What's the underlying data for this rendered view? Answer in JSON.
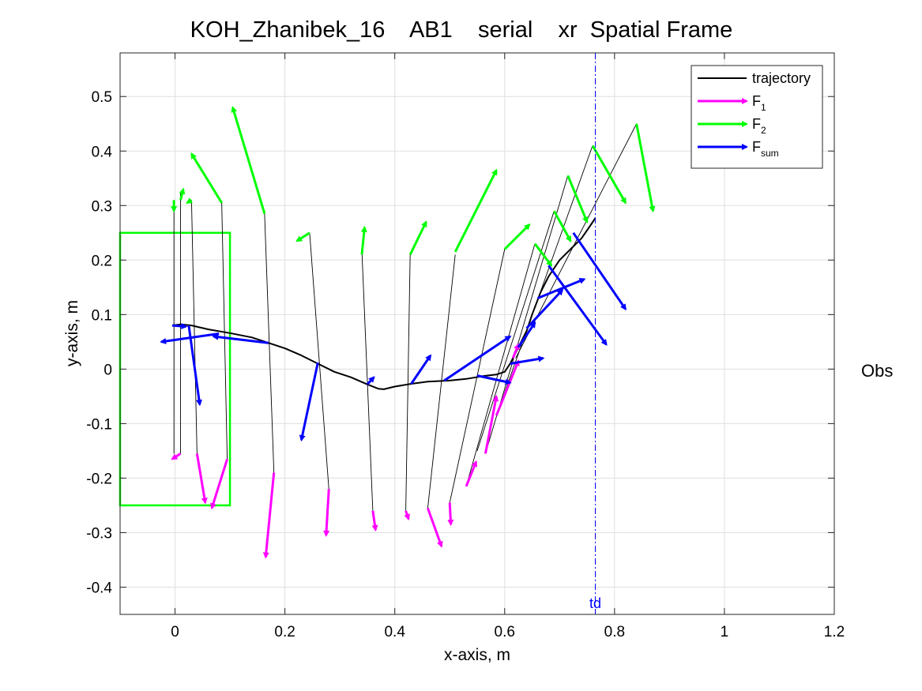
{
  "chart_data": {
    "type": "line",
    "title": "KOH_Zhanibek_16    AB1    serial    xr  Spatial Frame",
    "xlabel": "x-axis, m",
    "ylabel": "y-axis, m",
    "side_label": "Obs",
    "xlim": [
      -0.1,
      1.2
    ],
    "ylim": [
      -0.45,
      0.58
    ],
    "xticks": [
      0,
      0.2,
      0.4,
      0.6,
      0.8,
      1,
      1.2
    ],
    "xtick_labels": [
      "0",
      "0.2",
      "0.4",
      "0.6",
      "0.8",
      "1",
      "1.2"
    ],
    "yticks": [
      -0.4,
      -0.3,
      -0.2,
      -0.1,
      0,
      0.1,
      0.2,
      0.3,
      0.4,
      0.5
    ],
    "ytick_labels": [
      "-0.4",
      "-0.3",
      "-0.2",
      "-0.1",
      "0",
      "0.1",
      "0.2",
      "0.3",
      "0.4",
      "0.5"
    ],
    "grid": true,
    "legend_position": "top-right",
    "legend": [
      {
        "text": "trajectory",
        "sub": "",
        "color": "#000000",
        "kind": "line"
      },
      {
        "text": "F",
        "sub": "1",
        "color": "#ff00ff",
        "kind": "arrow"
      },
      {
        "text": "F",
        "sub": "2",
        "color": "#00ff00",
        "kind": "arrow"
      },
      {
        "text": "F",
        "sub": "sum",
        "color": "#0000ff",
        "kind": "arrow"
      }
    ],
    "colors": {
      "trajectory": "#000000",
      "F1": "#ff00ff",
      "F2": "#00ff00",
      "Fsum": "#0000ff",
      "box": "#00ff00",
      "td": "#0000ff"
    },
    "obstacle_box": {
      "x": [
        -0.1,
        0.1
      ],
      "y": [
        -0.25,
        0.25
      ]
    },
    "td_line": {
      "x": 0.765,
      "label": "td"
    },
    "trajectory": [
      [
        -0.005,
        0.08
      ],
      [
        0.01,
        0.082
      ],
      [
        0.03,
        0.08
      ],
      [
        0.06,
        0.073
      ],
      [
        0.1,
        0.066
      ],
      [
        0.14,
        0.058
      ],
      [
        0.17,
        0.048
      ],
      [
        0.2,
        0.038
      ],
      [
        0.23,
        0.025
      ],
      [
        0.26,
        0.01
      ],
      [
        0.29,
        -0.005
      ],
      [
        0.32,
        -0.015
      ],
      [
        0.35,
        -0.028
      ],
      [
        0.37,
        -0.036
      ],
      [
        0.38,
        -0.037
      ],
      [
        0.4,
        -0.032
      ],
      [
        0.43,
        -0.027
      ],
      [
        0.46,
        -0.023
      ],
      [
        0.5,
        -0.021
      ],
      [
        0.53,
        -0.018
      ],
      [
        0.56,
        -0.013
      ],
      [
        0.585,
        -0.01
      ],
      [
        0.6,
        -0.005
      ],
      [
        0.61,
        0.01
      ],
      [
        0.62,
        0.03
      ],
      [
        0.63,
        0.05
      ],
      [
        0.64,
        0.07
      ],
      [
        0.65,
        0.1
      ],
      [
        0.665,
        0.14
      ],
      [
        0.68,
        0.17
      ],
      [
        0.7,
        0.2
      ],
      [
        0.72,
        0.22
      ],
      [
        0.74,
        0.24
      ],
      [
        0.755,
        0.262
      ],
      [
        0.765,
        0.277
      ]
    ],
    "connectors": [
      {
        "from": [
          -0.002,
          0.31
        ],
        "to": [
          -0.002,
          -0.155
        ]
      },
      {
        "from": [
          0.01,
          0.325
        ],
        "to": [
          0.01,
          -0.155
        ]
      },
      {
        "from": [
          0.03,
          0.31
        ],
        "to": [
          0.04,
          -0.155
        ]
      },
      {
        "from": [
          0.085,
          0.305
        ],
        "to": [
          0.095,
          -0.165
        ]
      },
      {
        "from": [
          0.163,
          0.285
        ],
        "to": [
          0.18,
          -0.19
        ]
      },
      {
        "from": [
          0.245,
          0.25
        ],
        "to": [
          0.28,
          -0.22
        ]
      },
      {
        "from": [
          0.34,
          0.22
        ],
        "to": [
          0.36,
          -0.26
        ]
      },
      {
        "from": [
          0.428,
          0.21
        ],
        "to": [
          0.42,
          -0.26
        ]
      },
      {
        "from": [
          0.51,
          0.21
        ],
        "to": [
          0.46,
          -0.255
        ]
      },
      {
        "from": [
          0.6,
          0.22
        ],
        "to": [
          0.5,
          -0.245
        ]
      },
      {
        "from": [
          0.655,
          0.23
        ],
        "to": [
          0.53,
          -0.215
        ]
      },
      {
        "from": [
          0.69,
          0.29
        ],
        "to": [
          0.55,
          -0.15
        ]
      },
      {
        "from": [
          0.715,
          0.355
        ],
        "to": [
          0.565,
          -0.155
        ]
      },
      {
        "from": [
          0.76,
          0.41
        ],
        "to": [
          0.585,
          -0.085
        ]
      },
      {
        "from": [
          0.84,
          0.45
        ],
        "to": [
          0.62,
          0.02
        ]
      }
    ],
    "F1": [
      {
        "from": [
          0.01,
          -0.155
        ],
        "to": [
          -0.005,
          -0.165
        ]
      },
      {
        "from": [
          0.04,
          -0.155
        ],
        "to": [
          0.055,
          -0.245
        ]
      },
      {
        "from": [
          0.095,
          -0.165
        ],
        "to": [
          0.067,
          -0.255
        ]
      },
      {
        "from": [
          0.18,
          -0.19
        ],
        "to": [
          0.165,
          -0.345
        ]
      },
      {
        "from": [
          0.28,
          -0.22
        ],
        "to": [
          0.275,
          -0.305
        ]
      },
      {
        "from": [
          0.36,
          -0.26
        ],
        "to": [
          0.365,
          -0.295
        ]
      },
      {
        "from": [
          0.42,
          -0.26
        ],
        "to": [
          0.425,
          -0.275
        ]
      },
      {
        "from": [
          0.46,
          -0.255
        ],
        "to": [
          0.485,
          -0.325
        ]
      },
      {
        "from": [
          0.5,
          -0.245
        ],
        "to": [
          0.502,
          -0.285
        ]
      },
      {
        "from": [
          0.53,
          -0.215
        ],
        "to": [
          0.548,
          -0.17
        ]
      },
      {
        "from": [
          0.565,
          -0.155
        ],
        "to": [
          0.585,
          -0.05
        ]
      },
      {
        "from": [
          0.585,
          -0.085
        ],
        "to": [
          0.625,
          0.015
        ]
      },
      {
        "from": [
          0.615,
          0.02
        ],
        "to": [
          0.625,
          0.045
        ]
      }
    ],
    "F2": [
      {
        "from": [
          -0.002,
          0.31
        ],
        "to": [
          -0.002,
          0.29
        ]
      },
      {
        "from": [
          0.01,
          0.31
        ],
        "to": [
          0.015,
          0.33
        ]
      },
      {
        "from": [
          0.03,
          0.31
        ],
        "to": [
          0.022,
          0.305
        ]
      },
      {
        "from": [
          0.085,
          0.305
        ],
        "to": [
          0.03,
          0.395
        ]
      },
      {
        "from": [
          0.163,
          0.285
        ],
        "to": [
          0.105,
          0.48
        ]
      },
      {
        "from": [
          0.245,
          0.25
        ],
        "to": [
          0.222,
          0.235
        ]
      },
      {
        "from": [
          0.34,
          0.21
        ],
        "to": [
          0.345,
          0.26
        ]
      },
      {
        "from": [
          0.428,
          0.21
        ],
        "to": [
          0.457,
          0.27
        ]
      },
      {
        "from": [
          0.51,
          0.215
        ],
        "to": [
          0.585,
          0.365
        ]
      },
      {
        "from": [
          0.6,
          0.22
        ],
        "to": [
          0.645,
          0.265
        ]
      },
      {
        "from": [
          0.655,
          0.23
        ],
        "to": [
          0.685,
          0.19
        ]
      },
      {
        "from": [
          0.69,
          0.29
        ],
        "to": [
          0.72,
          0.235
        ]
      },
      {
        "from": [
          0.715,
          0.355
        ],
        "to": [
          0.75,
          0.27
        ]
      },
      {
        "from": [
          0.76,
          0.41
        ],
        "to": [
          0.82,
          0.305
        ]
      },
      {
        "from": [
          0.84,
          0.45
        ],
        "to": [
          0.87,
          0.29
        ]
      }
    ],
    "Fsum": [
      {
        "from": [
          -0.005,
          0.08
        ],
        "to": [
          0.02,
          0.078
        ]
      },
      {
        "from": [
          0.025,
          0.08
        ],
        "to": [
          0.045,
          -0.065
        ]
      },
      {
        "from": [
          0.08,
          0.065
        ],
        "to": [
          -0.025,
          0.05
        ]
      },
      {
        "from": [
          0.17,
          0.048
        ],
        "to": [
          0.07,
          0.06
        ]
      },
      {
        "from": [
          0.26,
          0.012
        ],
        "to": [
          0.23,
          -0.13
        ]
      },
      {
        "from": [
          0.35,
          -0.028
        ],
        "to": [
          0.362,
          -0.015
        ]
      },
      {
        "from": [
          0.43,
          -0.027
        ],
        "to": [
          0.465,
          0.025
        ]
      },
      {
        "from": [
          0.49,
          -0.021
        ],
        "to": [
          0.61,
          0.06
        ]
      },
      {
        "from": [
          0.55,
          -0.012
        ],
        "to": [
          0.61,
          -0.025
        ]
      },
      {
        "from": [
          0.61,
          0.01
        ],
        "to": [
          0.67,
          0.02
        ]
      },
      {
        "from": [
          0.625,
          0.04
        ],
        "to": [
          0.655,
          0.085
        ]
      },
      {
        "from": [
          0.64,
          0.075
        ],
        "to": [
          0.705,
          0.145
        ]
      },
      {
        "from": [
          0.66,
          0.13
        ],
        "to": [
          0.745,
          0.165
        ]
      },
      {
        "from": [
          0.68,
          0.19
        ],
        "to": [
          0.785,
          0.045
        ]
      },
      {
        "from": [
          0.725,
          0.25
        ],
        "to": [
          0.82,
          0.11
        ]
      }
    ]
  }
}
